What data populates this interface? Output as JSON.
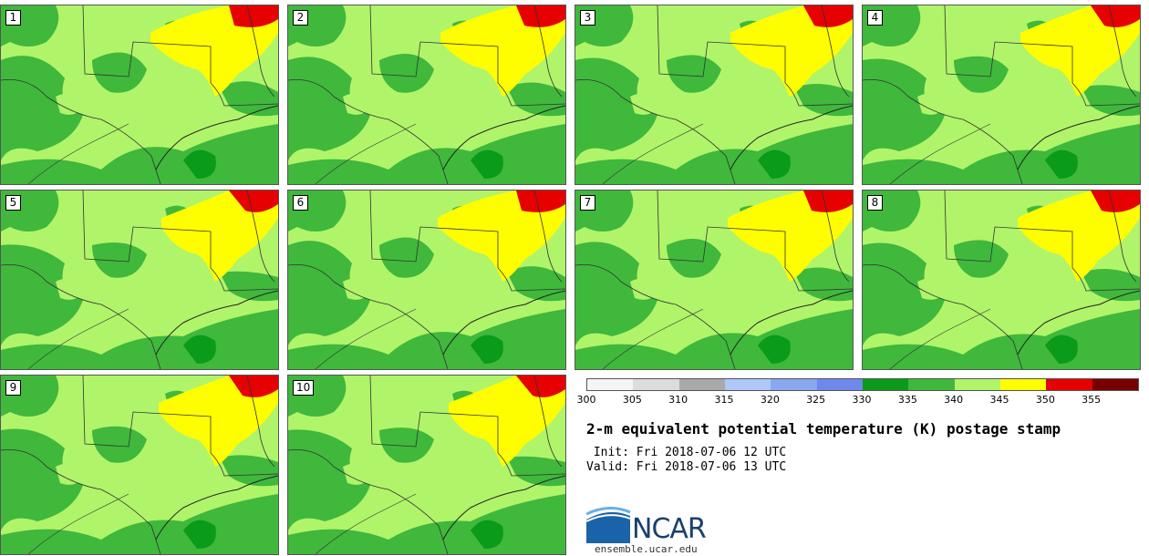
{
  "panels": [
    {
      "label": "1"
    },
    {
      "label": "2"
    },
    {
      "label": "3"
    },
    {
      "label": "4"
    },
    {
      "label": "5"
    },
    {
      "label": "6"
    },
    {
      "label": "7"
    },
    {
      "label": "8"
    },
    {
      "label": "9"
    },
    {
      "label": "10"
    }
  ],
  "colorbar": {
    "ticks": [
      "300",
      "305",
      "310",
      "315",
      "320",
      "325",
      "330",
      "335",
      "340",
      "345",
      "350",
      "355"
    ],
    "colors": [
      "#f5f5f5",
      "#dcdcdc",
      "#a9a9a9",
      "#b0c8f8",
      "#8aa8f0",
      "#6e88ec",
      "#099b19",
      "#3fb83c",
      "#b0f46a",
      "#fefe00",
      "#e60000",
      "#780000"
    ]
  },
  "field_colors": {
    "low": "#3fb83c",
    "mid": "#b0f46a",
    "high": "#fefe00",
    "max": "#e60000"
  },
  "title": "2-m equivalent potential temperature (K) postage stamp",
  "init": " Init: Fri 2018-07-06 12 UTC",
  "valid": "Valid: Fri 2018-07-06 13 UTC",
  "logo_text": "NCAR",
  "url": "ensemble.ucar.edu"
}
